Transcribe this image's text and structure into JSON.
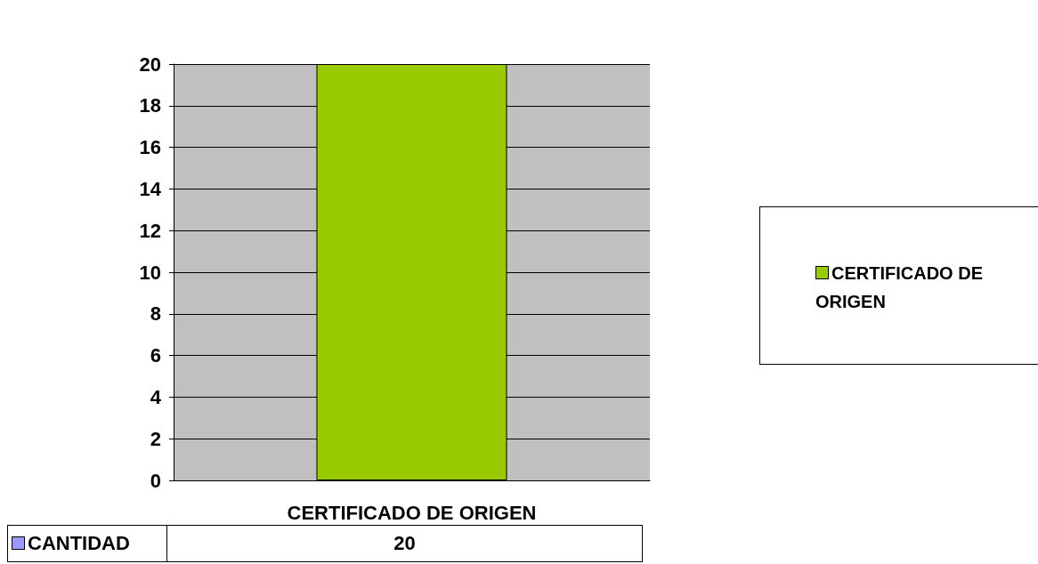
{
  "chart_data": {
    "type": "bar",
    "categories": [
      "CERTIFICADO DE ORIGEN"
    ],
    "series": [
      {
        "name": "CERTIFICADO DE ORIGEN",
        "color": "#99cc00",
        "values": [
          20
        ]
      }
    ],
    "annotations": [
      "CANTIDAD"
    ],
    "ylim": [
      0,
      20
    ],
    "yticks": [
      0,
      2,
      4,
      6,
      8,
      10,
      12,
      14,
      16,
      18,
      20
    ],
    "grid": "y",
    "legend": "right",
    "data_labels": true
  }
}
